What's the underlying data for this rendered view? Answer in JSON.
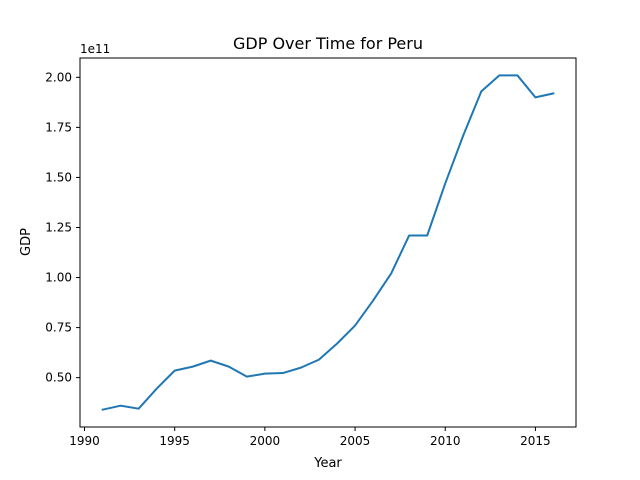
{
  "chart_data": {
    "type": "line",
    "title": "GDP Over Time for Peru",
    "xlabel": "Year",
    "ylabel": "GDP",
    "y_offset_label": "1e11",
    "xlim": [
      1989.75,
      2017.25
    ],
    "ylim": [
      0.2535,
      2.0965
    ],
    "y_scale_factor": 100000000000,
    "x_ticks": [
      1990,
      1995,
      2000,
      2005,
      2010,
      2015
    ],
    "x_tick_labels": [
      "1990",
      "1995",
      "2000",
      "2005",
      "2010",
      "2015"
    ],
    "y_ticks": [
      0.5,
      0.75,
      1.0,
      1.25,
      1.5,
      1.75,
      2.0
    ],
    "y_tick_labels": [
      "0.50",
      "0.75",
      "1.00",
      "1.25",
      "1.50",
      "1.75",
      "2.00"
    ],
    "grid": false,
    "series": [
      {
        "color": "#1f77b4",
        "x": [
          1991,
          1992,
          1993,
          1994,
          1995,
          1996,
          1997,
          1998,
          1999,
          2000,
          2001,
          2002,
          2003,
          2004,
          2005,
          2006,
          2007,
          2008,
          2009,
          2010,
          2011,
          2012,
          2013,
          2014,
          2015,
          2016
        ],
        "y": [
          0.34,
          0.36,
          0.345,
          0.445,
          0.535,
          0.555,
          0.585,
          0.555,
          0.505,
          0.52,
          0.523,
          0.55,
          0.59,
          0.67,
          0.76,
          0.885,
          1.02,
          1.21,
          1.21,
          1.47,
          1.71,
          1.93,
          2.01,
          2.01,
          1.9,
          1.92
        ]
      }
    ]
  }
}
